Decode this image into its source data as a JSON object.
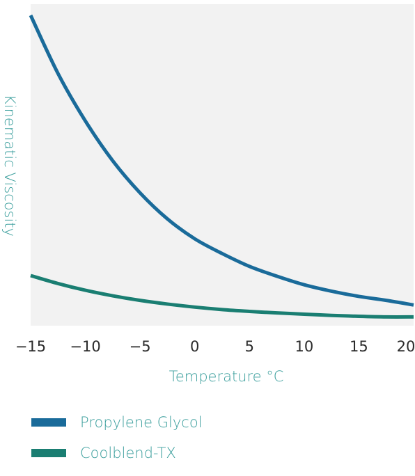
{
  "colors": {
    "plot_background": "#f2f2f2",
    "axis_title": "#3a9e9c",
    "tick_text": "#2b2b2b"
  },
  "chart_data": {
    "type": "line",
    "title": "",
    "xlabel": "Temperature °C",
    "ylabel": "Kinematic Viscosity",
    "xlim": [
      -15,
      20
    ],
    "ylim": [
      0,
      100
    ],
    "x_ticks": [
      "-15",
      "-10",
      "-5",
      "0",
      "5",
      "10",
      "15",
      "20"
    ],
    "y_ticks": [],
    "grid": false,
    "legend_position": "bottom-left",
    "series": [
      {
        "name": "Propylene Glycol",
        "color": "#1a6b9a",
        "x": [
          -15,
          -12.5,
          -10,
          -7.5,
          -5,
          -2.5,
          0,
          2.5,
          5,
          7.5,
          10,
          12.5,
          15,
          17.5,
          20
        ],
        "y": [
          100,
          81,
          65.5,
          52.5,
          42,
          33.5,
          27,
          22.2,
          18,
          14.8,
          12,
          9.9,
          8.2,
          6.9,
          5.4
        ]
      },
      {
        "name": "Coolblend-TX",
        "color": "#1a7e72",
        "x": [
          -15,
          -12.5,
          -10,
          -7.5,
          -5,
          -2.5,
          0,
          2.5,
          5,
          7.5,
          10,
          12.5,
          15,
          17.5,
          20
        ],
        "y": [
          15,
          12.4,
          10.2,
          8.4,
          6.9,
          5.7,
          4.7,
          3.9,
          3.3,
          2.8,
          2.4,
          2.0,
          1.7,
          1.5,
          1.5
        ]
      }
    ]
  }
}
